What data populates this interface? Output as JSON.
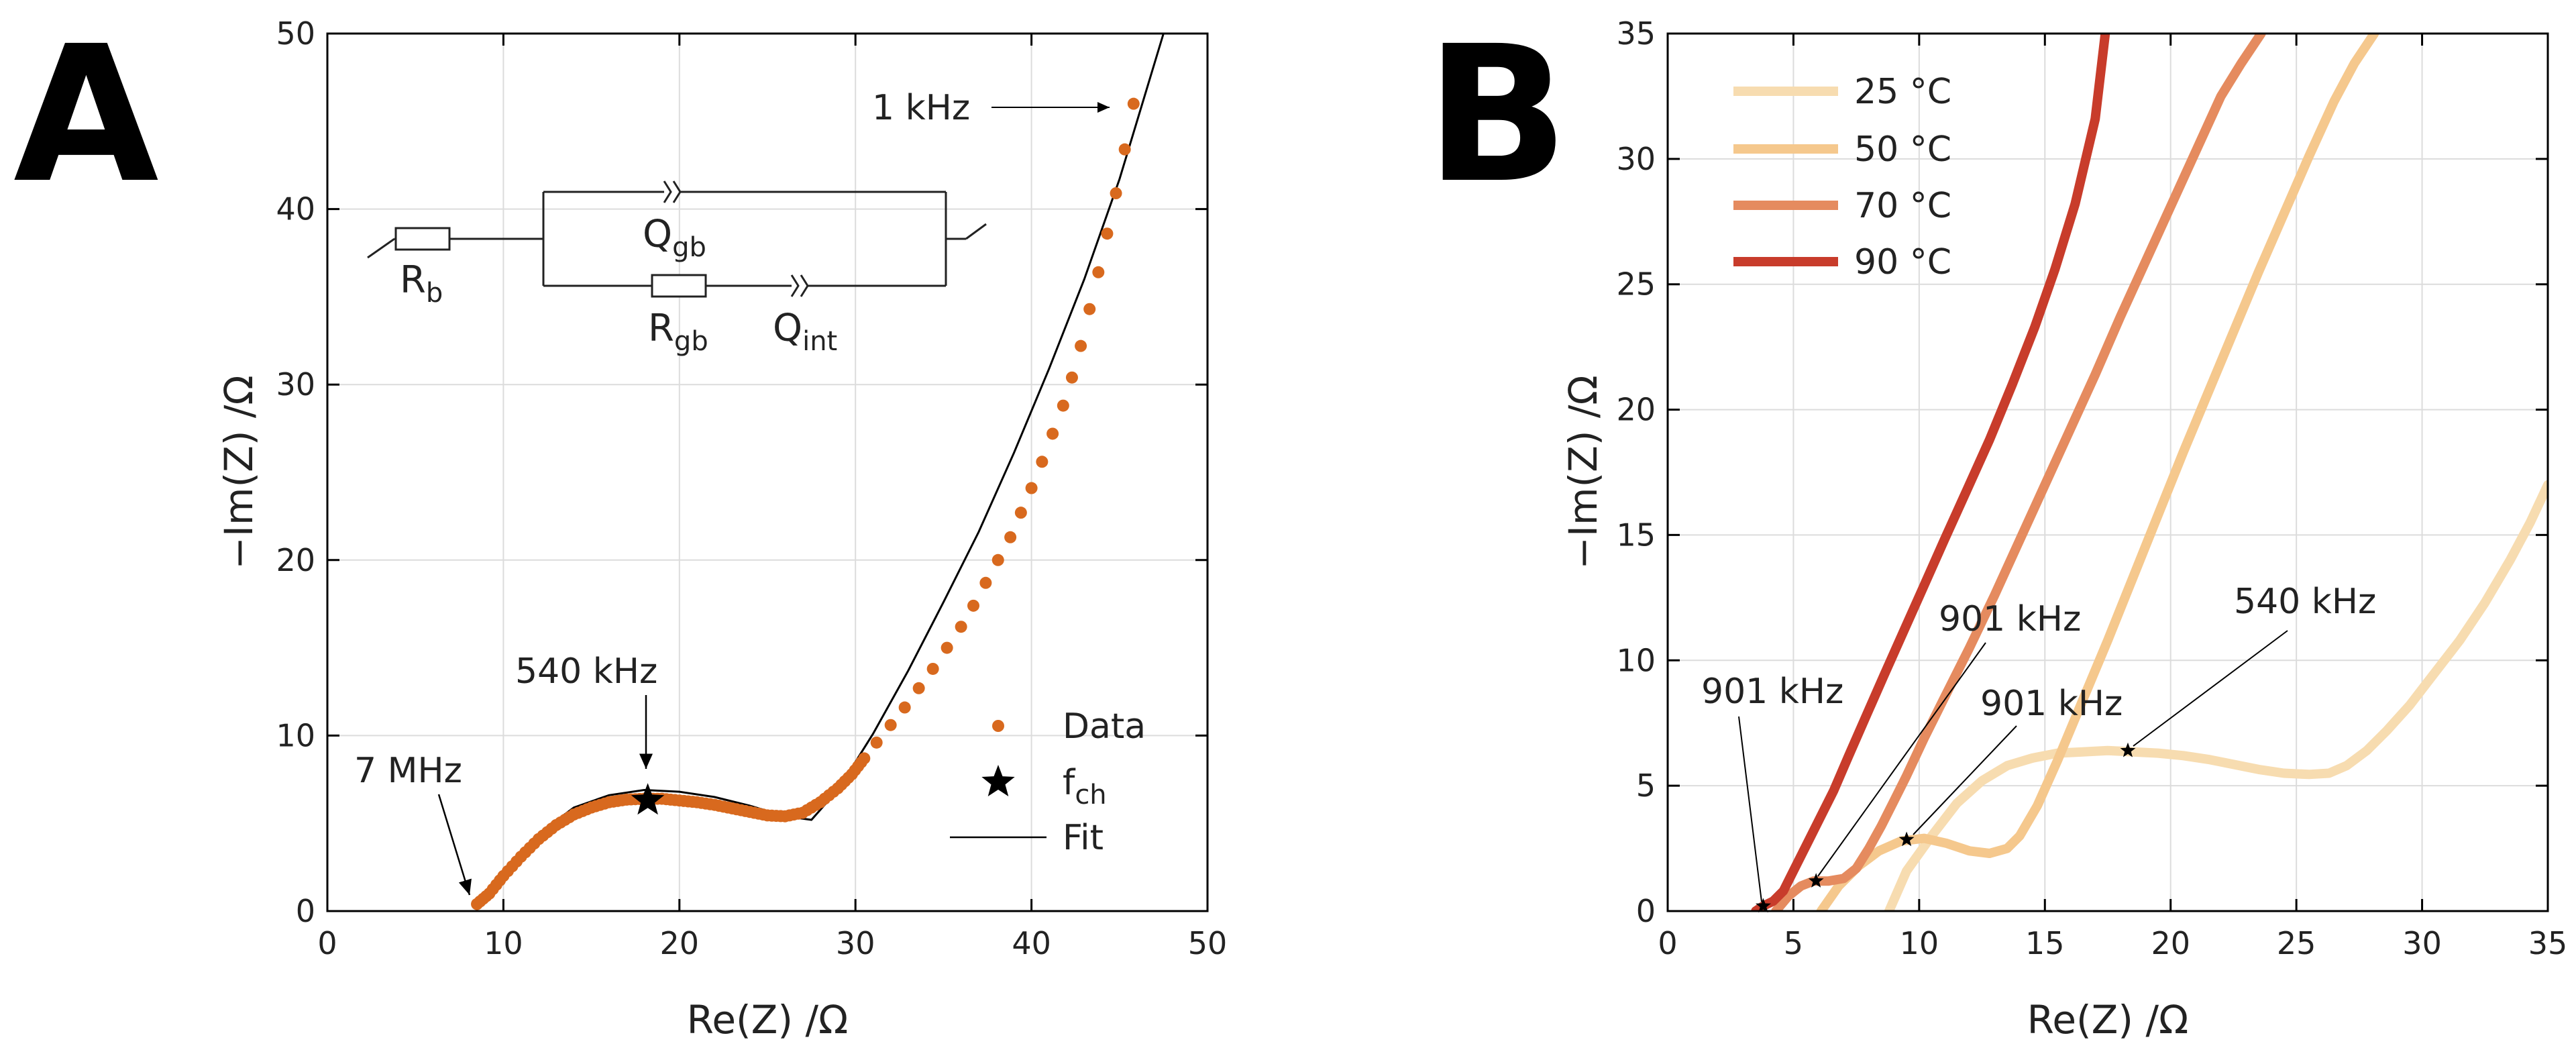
{
  "chart_data": [
    {
      "panel": "A",
      "type": "scatter",
      "xlabel": "Re(Z) /Ω",
      "ylabel": "−Im(Z) /Ω",
      "xlim": [
        0,
        50
      ],
      "ylim": [
        0,
        50
      ],
      "xticks": [
        "0",
        "10",
        "20",
        "30",
        "40",
        "50"
      ],
      "yticks": [
        "0",
        "10",
        "20",
        "30",
        "40",
        "50"
      ],
      "grid": true,
      "series": [
        {
          "name": "Data",
          "color": "#d8691e",
          "x": [
            8.5,
            9.2,
            10.0,
            11.0,
            12.0,
            13.0,
            14.0,
            15.0,
            16.0,
            17.0,
            18.0,
            19.0,
            20.0,
            21.0,
            22.0,
            23.0,
            24.0,
            25.0,
            26.0,
            27.0,
            28.0,
            29.0,
            29.8,
            30.5,
            31.2,
            32.0,
            32.8,
            33.6,
            34.4,
            35.2,
            36.0,
            36.7,
            37.4,
            38.1,
            38.8,
            39.4,
            40.0,
            40.6,
            41.2,
            41.8,
            42.3,
            42.8,
            43.3,
            43.8,
            44.3,
            44.8,
            45.3,
            45.8
          ],
          "y": [
            0.4,
            1.0,
            2.0,
            3.1,
            4.1,
            4.9,
            5.5,
            5.9,
            6.2,
            6.35,
            6.4,
            6.4,
            6.3,
            6.2,
            6.05,
            5.85,
            5.65,
            5.45,
            5.4,
            5.6,
            6.2,
            7.0,
            7.8,
            8.7,
            9.6,
            10.6,
            11.6,
            12.7,
            13.8,
            15.0,
            16.2,
            17.4,
            18.7,
            20.0,
            21.3,
            22.7,
            24.1,
            25.6,
            27.2,
            28.8,
            30.4,
            32.2,
            34.3,
            36.4,
            38.6,
            40.9,
            43.4,
            46.0
          ]
        },
        {
          "name": "Fit",
          "color": "#000000",
          "x": [
            8.5,
            10,
            12,
            14,
            16,
            18,
            20,
            22,
            24,
            26,
            27.5,
            29,
            31,
            33,
            35,
            37,
            39,
            41,
            43,
            45,
            47.5
          ],
          "y": [
            0.3,
            2.0,
            4.4,
            5.9,
            6.6,
            6.9,
            6.8,
            6.5,
            6.0,
            5.4,
            5.2,
            6.9,
            10.1,
            13.7,
            17.6,
            21.6,
            26.1,
            30.9,
            36.0,
            41.7,
            50.0
          ]
        },
        {
          "name": "f_ch",
          "marker": "star",
          "x": [
            18.2
          ],
          "y": [
            6.3
          ]
        }
      ],
      "annotations": [
        {
          "text": "7 MHz",
          "x": 8.4,
          "y": 0.4
        },
        {
          "text": "540 kHz",
          "x": 18.2,
          "y": 6.4
        },
        {
          "text": "1 kHz",
          "x": 45.8,
          "y": 46.0
        }
      ],
      "legend": {
        "position": "bottom-right",
        "items": [
          {
            "label": "Data",
            "marker": "dot",
            "color": "#d8691e"
          },
          {
            "label": "f",
            "sub": "ch",
            "marker": "star",
            "color": "#000000"
          },
          {
            "label": "Fit",
            "marker": "line",
            "color": "#000000"
          }
        ]
      },
      "circuit": {
        "labels": [
          {
            "main": "R",
            "sub": "b"
          },
          {
            "main": "Q",
            "sub": "gb"
          },
          {
            "main": "R",
            "sub": "gb"
          },
          {
            "main": "Q",
            "sub": "int"
          }
        ]
      }
    },
    {
      "panel": "B",
      "type": "line",
      "xlabel": "Re(Z) /Ω",
      "ylabel": "−Im(Z) /Ω",
      "xlim": [
        0,
        35
      ],
      "ylim": [
        0,
        35
      ],
      "xticks": [
        "0",
        "5",
        "10",
        "15",
        "20",
        "25",
        "30",
        "35"
      ],
      "yticks": [
        "0",
        "5",
        "10",
        "15",
        "20",
        "25",
        "30",
        "35"
      ],
      "grid": true,
      "series": [
        {
          "name": "25 °C",
          "color": "#f7dcb0",
          "x": [
            8.8,
            9.5,
            10.5,
            11.5,
            12.5,
            13.5,
            14.5,
            15.5,
            16.5,
            17.5,
            18.5,
            19.5,
            20.5,
            21.5,
            22.5,
            23.5,
            24.5,
            25.5,
            26.3,
            27.0,
            27.8,
            28.6,
            29.5,
            30.5,
            31.5,
            32.5,
            33.5,
            34.3,
            35.0
          ],
          "y": [
            0.0,
            1.6,
            3.0,
            4.3,
            5.2,
            5.8,
            6.1,
            6.3,
            6.35,
            6.4,
            6.35,
            6.3,
            6.2,
            6.05,
            5.85,
            5.65,
            5.5,
            5.45,
            5.5,
            5.8,
            6.4,
            7.2,
            8.2,
            9.5,
            10.8,
            12.3,
            14.0,
            15.5,
            17.0
          ]
        },
        {
          "name": "50 °C",
          "color": "#f5c88d",
          "x": [
            6.1,
            6.8,
            7.6,
            8.4,
            9.3,
            10.2,
            11.1,
            12.0,
            12.8,
            13.5,
            14.0,
            14.7,
            15.5,
            16.5,
            17.5,
            18.5,
            19.5,
            20.5,
            21.5,
            22.5,
            23.5,
            24.5,
            25.5,
            26.5,
            27.3,
            28.1
          ],
          "y": [
            0.0,
            1.0,
            1.8,
            2.4,
            2.8,
            2.9,
            2.7,
            2.4,
            2.3,
            2.5,
            3.0,
            4.2,
            6.0,
            8.4,
            10.8,
            13.3,
            15.8,
            18.3,
            20.7,
            23.1,
            25.5,
            27.8,
            30.1,
            32.3,
            33.8,
            35.0
          ]
        },
        {
          "name": "70 °C",
          "color": "#e58b5f",
          "x": [
            4.3,
            4.8,
            5.3,
            5.8,
            6.4,
            7.0,
            7.5,
            8.0,
            8.5,
            9.0,
            9.5,
            10.2,
            11.0,
            12.0,
            13.0,
            14.0,
            15.0,
            16.0,
            17.0,
            18.0,
            19.0,
            20.0,
            21.0,
            22.0,
            22.8,
            23.6
          ],
          "y": [
            0.0,
            0.6,
            1.0,
            1.2,
            1.2,
            1.3,
            1.7,
            2.5,
            3.4,
            4.4,
            5.4,
            6.9,
            8.5,
            10.5,
            12.6,
            14.8,
            17.0,
            19.2,
            21.4,
            23.7,
            25.9,
            28.1,
            30.3,
            32.5,
            33.8,
            35.0
          ]
        },
        {
          "name": "90 °C",
          "color": "#c83c2b",
          "x": [
            3.5,
            3.8,
            4.2,
            4.6,
            5.0,
            5.5,
            6.0,
            6.6,
            7.2,
            7.9,
            8.6,
            9.4,
            10.2,
            11.0,
            11.9,
            12.8,
            13.7,
            14.6,
            15.4,
            16.2,
            17.0,
            17.4
          ],
          "y": [
            0.0,
            0.2,
            0.4,
            0.8,
            1.6,
            2.6,
            3.6,
            4.8,
            6.2,
            7.8,
            9.4,
            11.2,
            13.0,
            14.8,
            16.8,
            18.8,
            21.0,
            23.3,
            25.6,
            28.2,
            31.6,
            35.0
          ]
        }
      ],
      "markers": [
        {
          "x": 18.3,
          "y": 6.4
        },
        {
          "x": 9.5,
          "y": 2.85
        },
        {
          "x": 5.9,
          "y": 1.2
        },
        {
          "x": 3.8,
          "y": 0.2
        }
      ],
      "annotations": [
        {
          "text": "540 kHz",
          "x": 18.3,
          "y": 6.4
        },
        {
          "text": "901 kHz",
          "x": 9.5,
          "y": 2.85
        },
        {
          "text": "901 kHz",
          "x": 5.9,
          "y": 1.2
        },
        {
          "text": "901 kHz",
          "x": 3.8,
          "y": 0.2
        }
      ],
      "legend": {
        "position": "top-left",
        "items": [
          {
            "label": "25 °C",
            "color": "#f7dcb0"
          },
          {
            "label": "50 °C",
            "color": "#f5c88d"
          },
          {
            "label": "70 °C",
            "color": "#e58b5f"
          },
          {
            "label": "90 °C",
            "color": "#c83c2b"
          }
        ]
      }
    }
  ]
}
